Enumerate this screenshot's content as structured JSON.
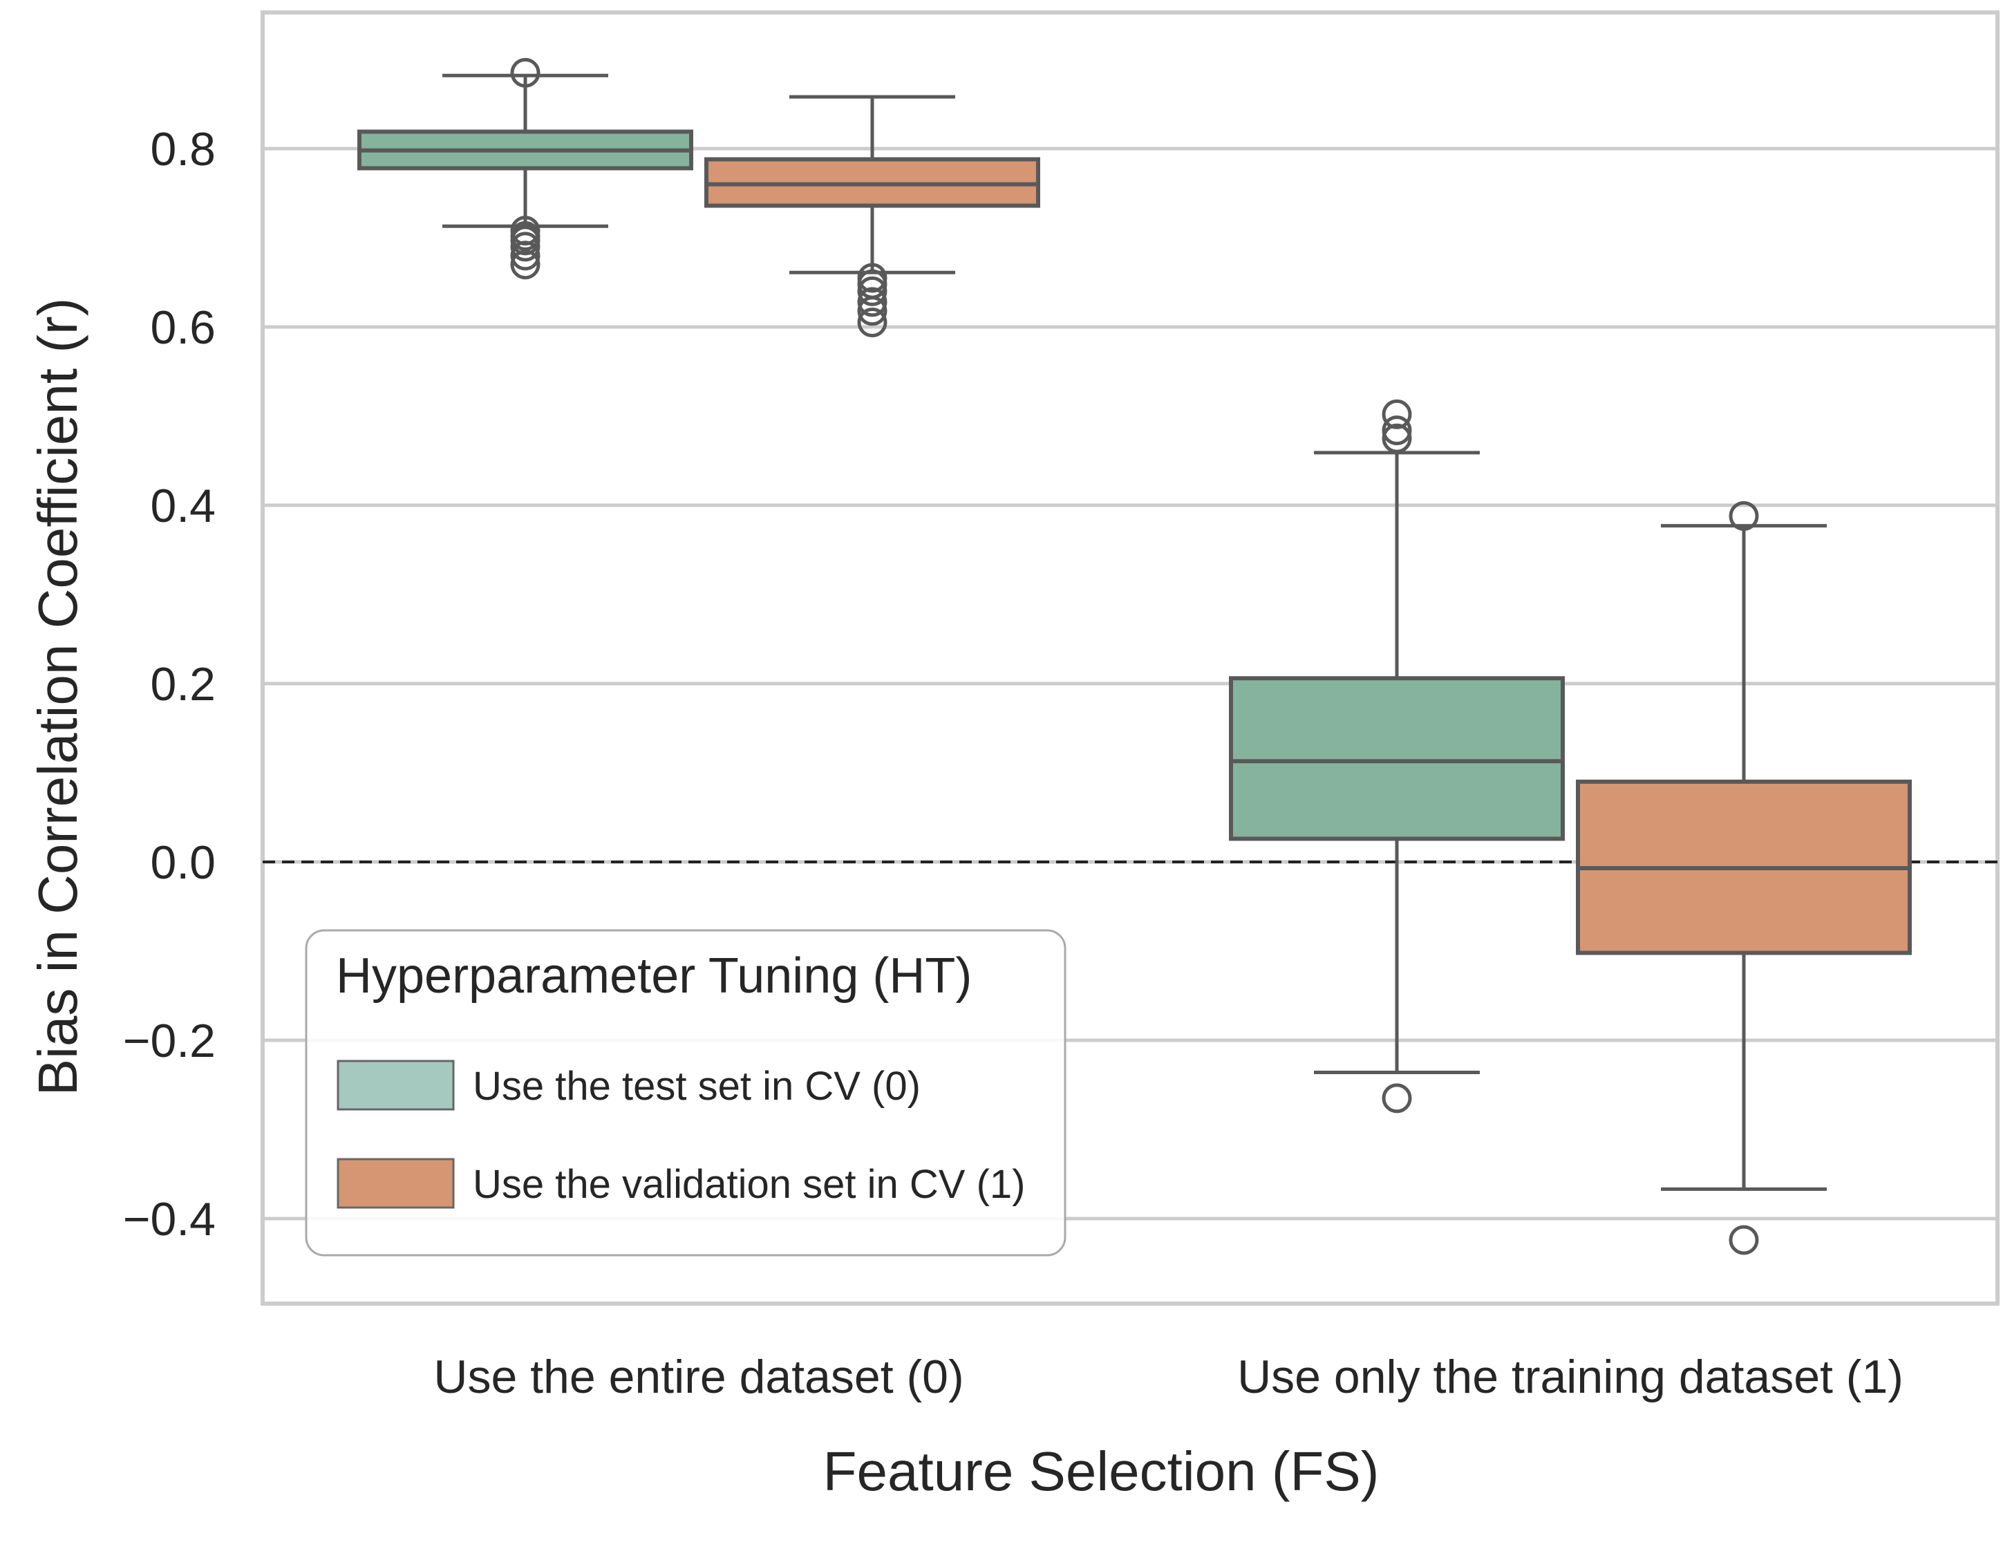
{
  "chart_data": {
    "type": "box",
    "xlabel": "Feature Selection (FS)",
    "ylabel": "Bias in Correlation Coefficient (r)",
    "ylim": [
      -0.5,
      0.95
    ],
    "yticks": [
      -0.4,
      -0.2,
      0.0,
      0.2,
      0.4,
      0.6,
      0.8
    ],
    "ytick_labels": [
      "−0.4",
      "−0.2",
      "0.0",
      "0.2",
      "0.4",
      "0.6",
      "0.8"
    ],
    "grid": "horizontal",
    "reference_line": {
      "y": 0.0,
      "style": "dashed",
      "color": "#222222"
    },
    "categories": [
      "Use the entire dataset (0)",
      "Use only the training dataset (1)"
    ],
    "legend": {
      "title": "Hyperparameter Tuning (HT)",
      "placement": "lower-left"
    },
    "series": [
      {
        "name": "Use the test set in CV (0)",
        "color": "#86b39e",
        "legend_color": "#a5c8bf",
        "boxes": [
          {
            "whisker_low": 0.713,
            "q1": 0.778,
            "median": 0.798,
            "q3": 0.819,
            "whisker_high": 0.882,
            "outliers": [
              0.885,
              0.708,
              0.702,
              0.697,
              0.69,
              0.68,
              0.67
            ]
          },
          {
            "whisker_low": -0.236,
            "q1": 0.026,
            "median": 0.113,
            "q3": 0.206,
            "whisker_high": 0.459,
            "outliers": [
              0.502,
              0.484,
              0.475,
              -0.265
            ]
          }
        ]
      },
      {
        "name": "Use the validation set in CV (1)",
        "color": "#d69573",
        "legend_color": "#d69573",
        "boxes": [
          {
            "whisker_low": 0.661,
            "q1": 0.736,
            "median": 0.76,
            "q3": 0.788,
            "whisker_high": 0.858,
            "outliers": [
              0.655,
              0.648,
              0.64,
              0.628,
              0.618,
              0.605
            ]
          },
          {
            "whisker_low": -0.367,
            "q1": -0.102,
            "median": -0.007,
            "q3": 0.09,
            "whisker_high": 0.377,
            "outliers": [
              0.388,
              -0.424
            ]
          }
        ]
      }
    ]
  }
}
